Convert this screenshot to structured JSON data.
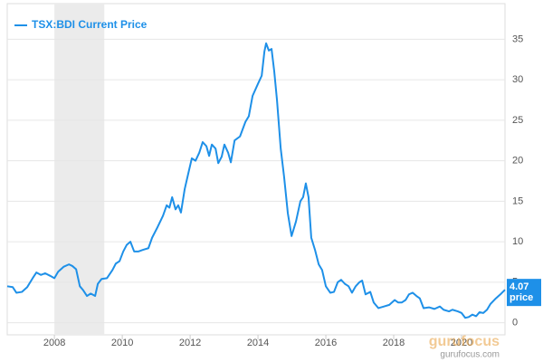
{
  "chart_data": {
    "type": "line",
    "x": [
      2006.61,
      2006.77,
      2006.88,
      2007.04,
      2007.2,
      2007.36,
      2007.47,
      2007.6,
      2007.73,
      2007.87,
      2008.0,
      2008.11,
      2008.27,
      2008.43,
      2008.53,
      2008.64,
      2008.75,
      2008.85,
      2008.96,
      2009.07,
      2009.2,
      2009.28,
      2009.39,
      2009.55,
      2009.71,
      2009.81,
      2009.92,
      2010.03,
      2010.13,
      2010.24,
      2010.35,
      2010.48,
      2010.61,
      2010.77,
      2010.88,
      2011.04,
      2011.2,
      2011.31,
      2011.39,
      2011.47,
      2011.57,
      2011.65,
      2011.73,
      2011.84,
      2011.95,
      2012.05,
      2012.16,
      2012.27,
      2012.37,
      2012.48,
      2012.56,
      2012.64,
      2012.75,
      2012.83,
      2012.93,
      2013.01,
      2013.12,
      2013.2,
      2013.31,
      2013.47,
      2013.63,
      2013.73,
      2013.84,
      2014.0,
      2014.11,
      2014.19,
      2014.24,
      2014.32,
      2014.4,
      2014.48,
      2014.56,
      2014.67,
      2014.77,
      2014.88,
      2014.99,
      2015.12,
      2015.25,
      2015.33,
      2015.41,
      2015.49,
      2015.57,
      2015.68,
      2015.79,
      2015.89,
      2016.0,
      2016.13,
      2016.24,
      2016.35,
      2016.45,
      2016.56,
      2016.67,
      2016.77,
      2016.88,
      2016.99,
      2017.07,
      2017.17,
      2017.31,
      2017.41,
      2017.55,
      2017.71,
      2017.87,
      2018.03,
      2018.13,
      2018.24,
      2018.35,
      2018.45,
      2018.56,
      2018.67,
      2018.77,
      2018.88,
      2019.04,
      2019.2,
      2019.36,
      2019.47,
      2019.63,
      2019.73,
      2019.89,
      2020.0,
      2020.11,
      2020.21,
      2020.32,
      2020.43,
      2020.53,
      2020.64,
      2020.75,
      2020.85,
      2021.01,
      2021.17,
      2021.28
    ],
    "series": [
      {
        "name": "TSX:BDI Current Price",
        "color": "#1e90e8",
        "values": [
          4.5,
          4.4,
          3.7,
          3.8,
          4.4,
          5.5,
          6.2,
          5.9,
          6.1,
          5.8,
          5.5,
          6.3,
          6.9,
          7.2,
          7.0,
          6.6,
          4.5,
          4.0,
          3.3,
          3.6,
          3.3,
          4.8,
          5.4,
          5.5,
          6.5,
          7.3,
          7.6,
          8.8,
          9.6,
          10.0,
          8.8,
          8.8,
          9.0,
          9.2,
          10.5,
          11.8,
          13.2,
          14.5,
          14.2,
          15.5,
          14.0,
          14.5,
          13.6,
          16.5,
          18.5,
          20.3,
          20.0,
          21.0,
          22.3,
          21.8,
          20.6,
          22.0,
          21.5,
          19.7,
          20.5,
          22.0,
          21.0,
          19.8,
          22.5,
          23.0,
          24.8,
          25.5,
          28.0,
          29.5,
          30.5,
          33.5,
          34.5,
          33.6,
          33.8,
          31.0,
          27.5,
          21.5,
          18.0,
          13.5,
          10.7,
          12.5,
          15.0,
          15.5,
          17.2,
          15.5,
          10.5,
          9.0,
          7.2,
          6.5,
          4.5,
          3.7,
          3.8,
          5.0,
          5.3,
          4.8,
          4.5,
          3.7,
          4.5,
          5.0,
          5.2,
          3.5,
          3.8,
          2.5,
          1.8,
          2.0,
          2.2,
          2.8,
          2.5,
          2.5,
          2.8,
          3.5,
          3.7,
          3.3,
          3.0,
          1.8,
          1.9,
          1.7,
          2.0,
          1.6,
          1.4,
          1.6,
          1.4,
          1.2,
          0.6,
          0.7,
          1.0,
          0.8,
          1.3,
          1.2,
          1.6,
          2.3,
          3.0,
          3.6,
          4.07
        ]
      }
    ],
    "end_label_unit": "price",
    "shaded_ranges": [
      [
        2008.0,
        2009.47
      ]
    ],
    "xlim": [
      2006.61,
      2021.28
    ],
    "xticks": [
      2008,
      2010,
      2012,
      2014,
      2016,
      2018,
      2020
    ],
    "ylim": [
      -1.5,
      39.4
    ],
    "yticks": [
      0,
      5,
      10,
      15,
      20,
      25,
      30,
      35
    ],
    "grid": true,
    "watermark": {
      "logo": "gurufocus",
      "url": "gurufocus.com"
    }
  }
}
